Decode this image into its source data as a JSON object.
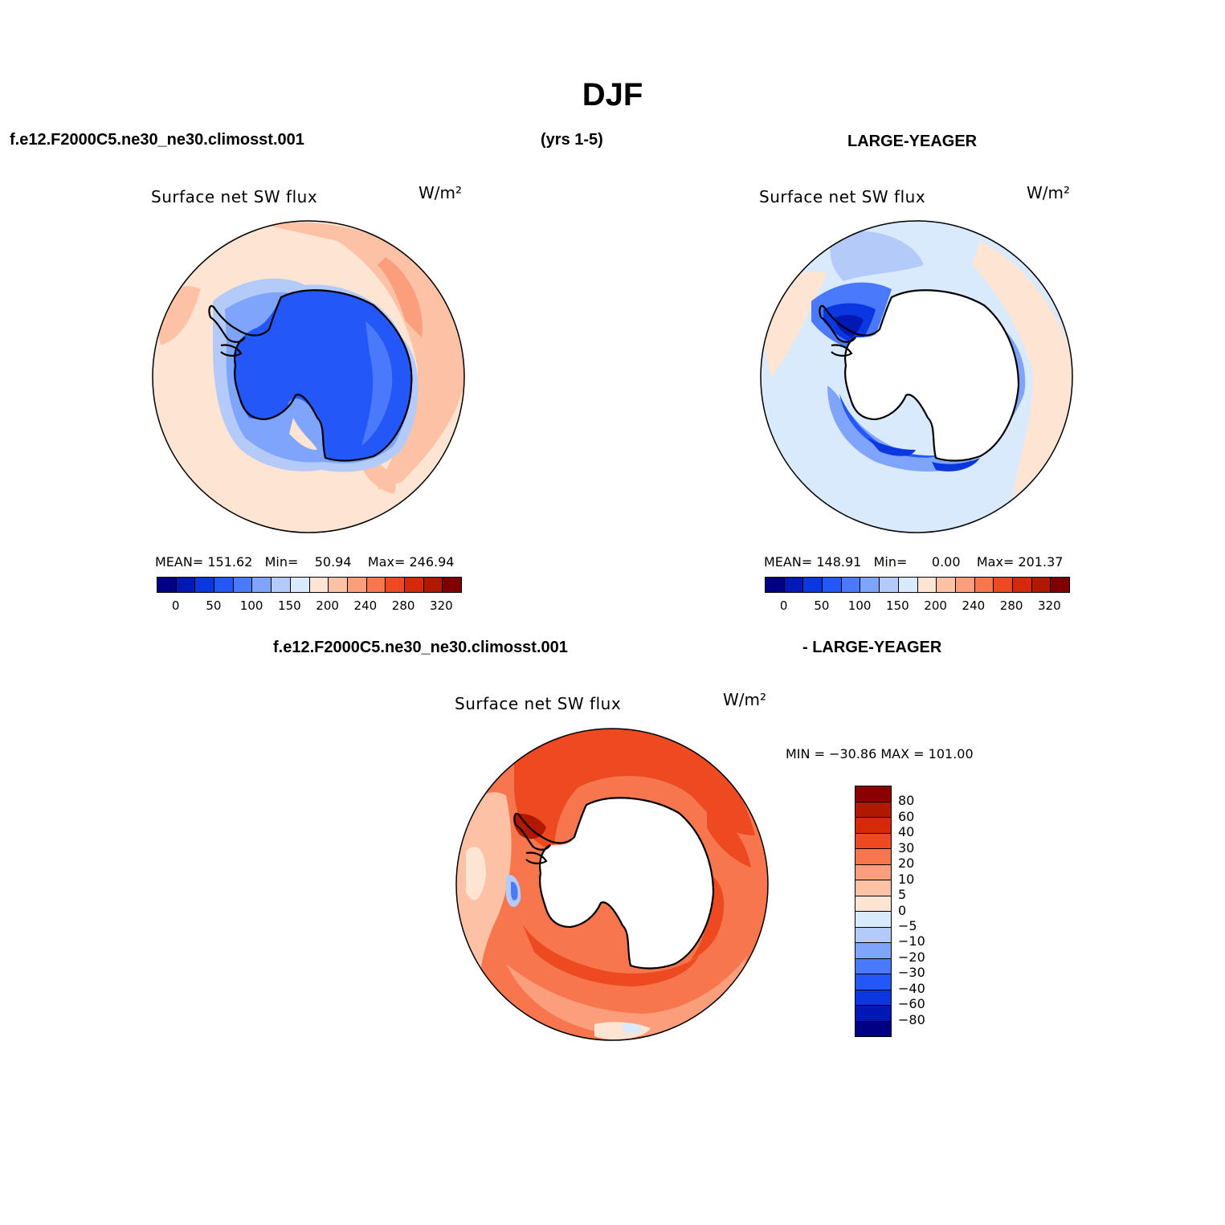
{
  "title": "DJF",
  "header": {
    "case_left": "f.e12.F2000C5.ne30_ne30.climosst.001",
    "years": "(yrs 1-5)",
    "case_right": "LARGE-YEAGER"
  },
  "panel1": {
    "field": "Surface net SW flux",
    "units": "W/m²",
    "mean_label": "MEAN=",
    "mean": "151.62",
    "min_label": "Min=",
    "min": "50.94",
    "max_label": "Max=",
    "max": "246.94"
  },
  "panel2": {
    "field": "Surface net SW flux",
    "units": "W/m²",
    "mean_label": "MEAN=",
    "mean": "148.91",
    "min_label": "Min=",
    "min": "0.00",
    "max_label": "Max=",
    "max": "201.37"
  },
  "diff": {
    "case_left": "f.e12.F2000C5.ne30_ne30.climosst.001",
    "case_right": "- LARGE-YEAGER",
    "field": "Surface net SW flux",
    "units": "W/m²",
    "minmax": "MIN = −30.86 MAX = 101.00"
  },
  "colorbar_abs": {
    "colors": [
      "#000085",
      "#0019b4",
      "#0a37df",
      "#2357f7",
      "#4b79fb",
      "#7fa4fb",
      "#b4cbfa",
      "#daeafd",
      "#fee4d2",
      "#fdc2a5",
      "#fb9e7c",
      "#f7764e",
      "#ee4a22",
      "#d6290a",
      "#b01800",
      "#800000"
    ],
    "tick_labels": [
      "0",
      "50",
      "100",
      "150",
      "200",
      "240",
      "280",
      "320"
    ]
  },
  "colorbar_diff": {
    "colors": [
      "#8b0000",
      "#b01800",
      "#d6290a",
      "#ee4a22",
      "#f7764e",
      "#fb9e7c",
      "#fdc2a5",
      "#fee4d2",
      "#daeafd",
      "#b4cbfa",
      "#7fa4fb",
      "#4b79fb",
      "#2357f7",
      "#0a37df",
      "#0019b4",
      "#000085"
    ],
    "labels": [
      "80",
      "60",
      "40",
      "30",
      "20",
      "10",
      "5",
      "0",
      "−5",
      "−10",
      "−20",
      "−30",
      "−40",
      "−60",
      "−80"
    ]
  }
}
